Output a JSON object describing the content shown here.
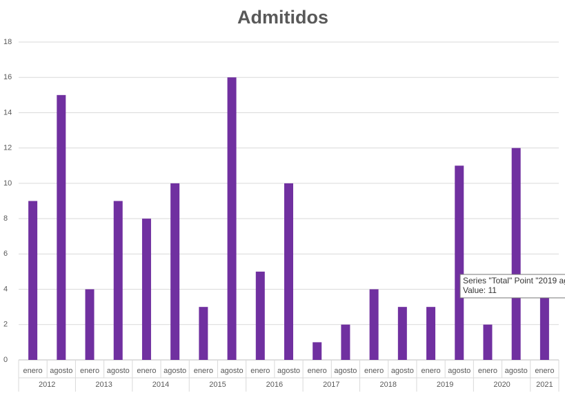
{
  "chart_data": {
    "type": "bar",
    "title": "Admitidos",
    "categories": [
      "enero",
      "agosto",
      "enero",
      "agosto",
      "enero",
      "agosto",
      "enero",
      "agosto",
      "enero",
      "agosto",
      "enero",
      "agosto",
      "enero",
      "agosto",
      "enero",
      "agosto",
      "enero",
      "agosto",
      "enero"
    ],
    "x_groups": [
      "2012",
      null,
      "2013",
      null,
      "2014",
      null,
      "2015",
      null,
      "2016",
      null,
      "2017",
      null,
      "2018",
      null,
      "2019",
      null,
      "2020",
      null,
      "2021"
    ],
    "values": [
      9,
      15,
      4,
      9,
      8,
      10,
      3,
      16,
      5,
      10,
      1,
      2,
      4,
      3,
      3,
      11,
      2,
      12,
      4
    ],
    "color": "#7030a0",
    "ylim": [
      0,
      18
    ],
    "yticks": [
      0,
      2,
      4,
      6,
      8,
      10,
      12,
      14,
      16,
      18
    ],
    "grid": true,
    "tooltip": [
      "Series \"Total\" Point \"2019 ag",
      "Value: 11"
    ]
  }
}
